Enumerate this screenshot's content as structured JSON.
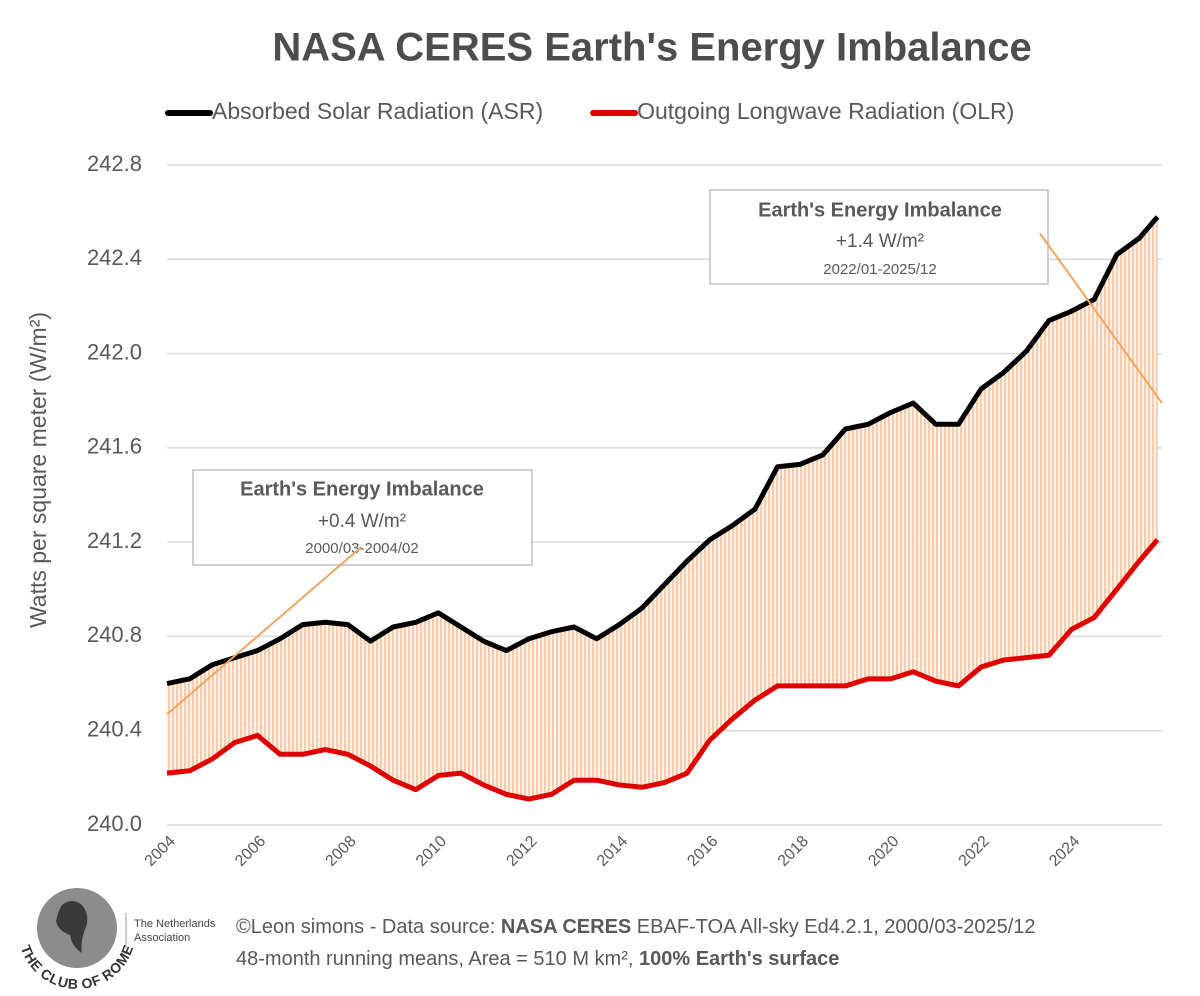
{
  "chart_data": {
    "type": "line",
    "title": "NASA CERES Earth's Energy Imbalance",
    "y_label": "Watts per square meter (W/m²)",
    "x": [
      2004.0,
      2004.5,
      2005.0,
      2005.5,
      2006.0,
      2006.5,
      2007.0,
      2007.5,
      2008.0,
      2008.5,
      2009.0,
      2009.5,
      2010.0,
      2010.5,
      2011.0,
      2011.5,
      2012.0,
      2012.5,
      2013.0,
      2013.5,
      2014.0,
      2014.5,
      2015.0,
      2015.5,
      2016.0,
      2016.5,
      2017.0,
      2017.5,
      2018.0,
      2018.5,
      2019.0,
      2019.5,
      2020.0,
      2020.5,
      2021.0,
      2021.5,
      2022.0,
      2022.5,
      2023.0,
      2023.5,
      2024.0,
      2024.5,
      2025.0,
      2025.5,
      2025.9
    ],
    "series": [
      {
        "name": "Absorbed Solar Radiation (ASR)",
        "color": "#000000",
        "values": [
          240.6,
          240.62,
          240.68,
          240.71,
          240.74,
          240.79,
          240.85,
          240.86,
          240.85,
          240.78,
          240.84,
          240.86,
          240.9,
          240.84,
          240.78,
          240.74,
          240.79,
          240.82,
          240.84,
          240.79,
          240.85,
          240.92,
          241.02,
          241.12,
          241.21,
          241.27,
          241.34,
          241.52,
          241.53,
          241.57,
          241.68,
          241.7,
          241.75,
          241.79,
          241.7,
          241.7,
          241.85,
          241.92,
          242.01,
          242.14,
          242.18,
          242.23,
          242.42,
          242.49,
          242.58
        ]
      },
      {
        "name": "Outgoing Longwave Radiation (OLR)",
        "color": "#e00000",
        "values": [
          240.22,
          240.23,
          240.28,
          240.35,
          240.38,
          240.3,
          240.3,
          240.32,
          240.3,
          240.25,
          240.19,
          240.15,
          240.21,
          240.22,
          240.17,
          240.13,
          240.11,
          240.13,
          240.19,
          240.19,
          240.17,
          240.16,
          240.18,
          240.22,
          240.36,
          240.45,
          240.53,
          240.59,
          240.59,
          240.59,
          240.59,
          240.62,
          240.62,
          240.65,
          240.61,
          240.59,
          240.67,
          240.7,
          240.71,
          240.72,
          240.83,
          240.88,
          241.0,
          241.12,
          241.21
        ]
      }
    ],
    "xlim": [
      2004,
      2026
    ],
    "xticks": [
      2004,
      2006,
      2008,
      2010,
      2012,
      2014,
      2016,
      2018,
      2020,
      2022,
      2024
    ],
    "ylim": [
      240.0,
      242.8
    ],
    "yticks": [
      {
        "value": 240,
        "label": "240.0"
      },
      240.4,
      240.8,
      241.2,
      241.6,
      {
        "value": 242,
        "label": "242.0"
      },
      242.4,
      242.8
    ],
    "grid": true,
    "fill_color": "#f4b183",
    "annotations": [
      {
        "title": "Earth's Energy Imbalance",
        "value": "+0.4 W/m²",
        "period": "2000/03-2004/02",
        "trend": {
          "x": [
            2004.0,
            2008.3
          ],
          "y": [
            240.47,
            241.18
          ]
        }
      },
      {
        "title": "Earth's Energy Imbalance",
        "value": "+1.4 W/m²",
        "period": "2022/01-2025/12",
        "trend": {
          "x": [
            2023.3,
            2026.0
          ],
          "y": [
            242.51,
            241.79
          ]
        }
      }
    ],
    "trend_color": "#f4a460"
  },
  "footer": {
    "logo": {
      "name": "THE CLUB OF ROME",
      "association": [
        "The Netherlands",
        "Association"
      ]
    },
    "line1": [
      "©Leon simons - Data source: ",
      "NASA CERES",
      " EBAF-TOA All-sky Ed4.2.1, 2000/03-2025/12"
    ],
    "line2": [
      "48-month running means, Area = 510 M km², ",
      "100% Earth's surface"
    ]
  }
}
